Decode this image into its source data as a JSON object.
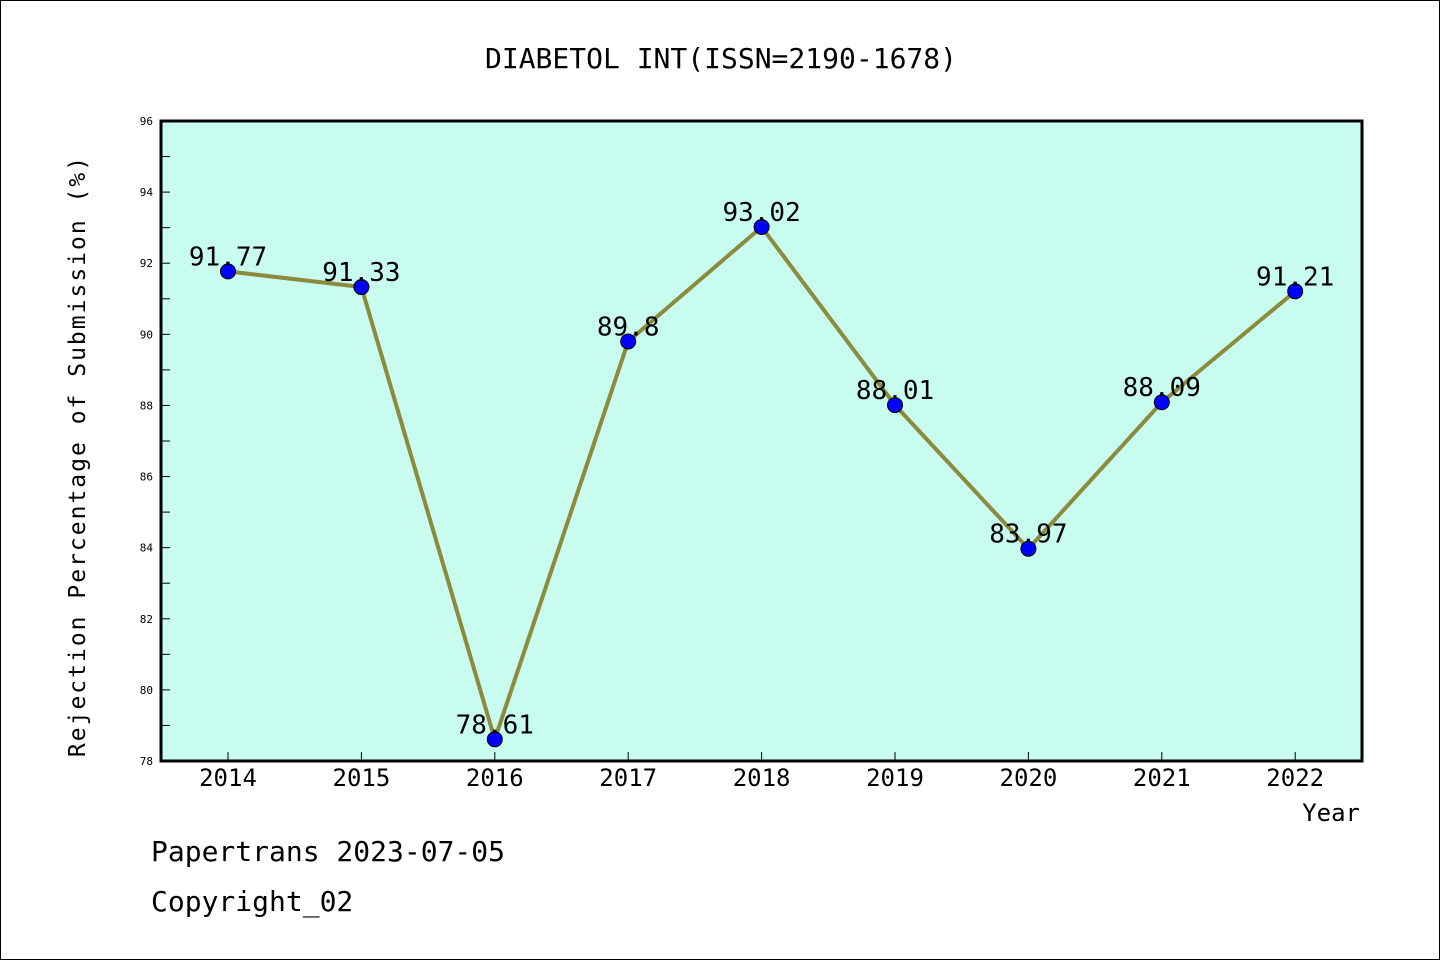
{
  "chart_data": {
    "type": "line",
    "title": "DIABETOL INT(ISSN=2190-1678)",
    "xlabel": "Year",
    "ylabel": "Rejection Percentage of Submission (%)",
    "categories": [
      "2014",
      "2015",
      "2016",
      "2017",
      "2018",
      "2019",
      "2020",
      "2021",
      "2022"
    ],
    "series": [
      {
        "values": [
          91.77,
          91.33,
          78.61,
          89.8,
          93.02,
          88.01,
          83.97,
          88.09,
          91.21
        ],
        "data_labels": [
          "91.77",
          "91.33",
          "78.61",
          "89.8",
          "93.02",
          "88.01",
          "83.97",
          "88.09",
          "91.21"
        ]
      }
    ],
    "ylim": [
      78,
      96
    ],
    "yticks": [
      "78",
      "80",
      "82",
      "84",
      "86",
      "88",
      "90",
      "92",
      "94",
      "96"
    ],
    "grid": false,
    "colors": {
      "plot_background": "#c8fcee",
      "line": "#8c8a3c",
      "marker": "#0000ff"
    }
  },
  "footer": {
    "line1": "Papertrans 2023-07-05",
    "line2": "Copyright_02"
  }
}
